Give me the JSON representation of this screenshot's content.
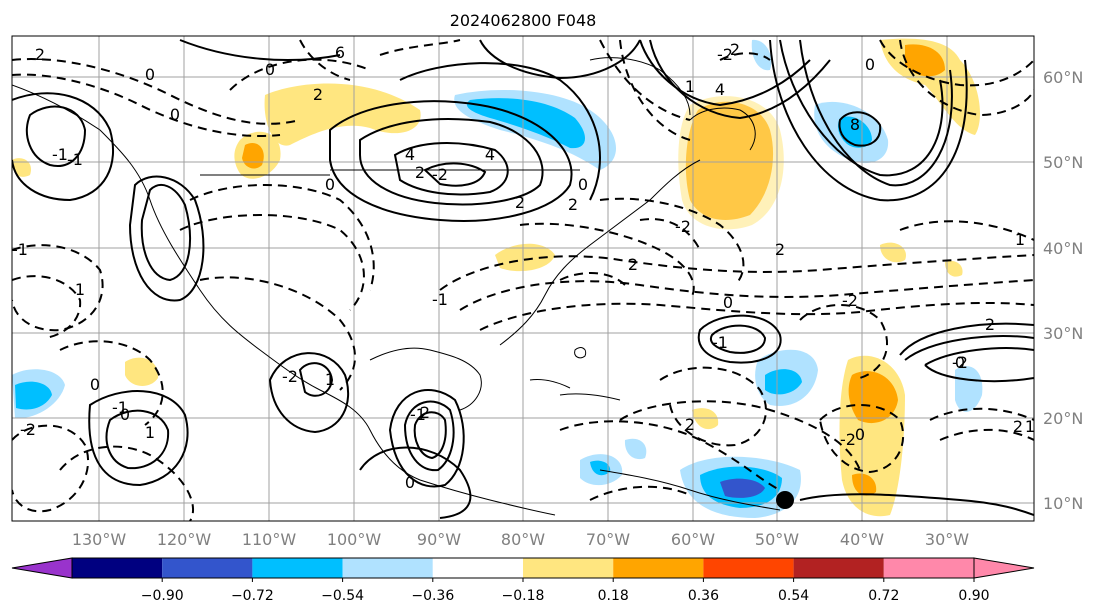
{
  "title": "2024062800 F048",
  "map": {
    "lon_labels": [
      "130°W",
      "120°W",
      "110°W",
      "100°W",
      "90°W",
      "80°W",
      "70°W",
      "60°W",
      "50°W",
      "40°W",
      "30°W"
    ],
    "lat_labels": [
      "60°N",
      "50°N",
      "40°N",
      "30°N",
      "20°N",
      "10°N"
    ],
    "contour_labels": [
      "2",
      "0",
      "6",
      "2",
      "2",
      "4",
      "2",
      "2",
      "4",
      "0",
      "-2",
      "2",
      "2",
      "-2",
      "0",
      "2",
      "0",
      "1",
      "-1",
      "0",
      "-1",
      "2",
      "1",
      "-2",
      "0",
      "0",
      "1",
      "1",
      "-1",
      "1",
      "2",
      "-2",
      "0",
      "-1",
      "1",
      "2",
      "-2",
      "-1",
      "0",
      "-2",
      "8",
      "-2",
      "0",
      "-1",
      "-1",
      "2",
      "0",
      "0",
      "-2",
      "4"
    ],
    "storm_marker": "tropical-cyclone-position"
  },
  "colorbar": {
    "tick_labels": [
      "−0.90",
      "−0.72",
      "−0.54",
      "−0.36",
      "−0.18",
      "0.18",
      "0.36",
      "0.54",
      "0.72",
      "0.90"
    ],
    "colors": [
      "#9933cc",
      "#000080",
      "#3355cc",
      "#00bfff",
      "#b0e2ff",
      "#ffffff",
      "#ffe680",
      "#ffa500",
      "#ff4500",
      "#b22222",
      "#ff88aa",
      "#ff88aa"
    ]
  }
}
